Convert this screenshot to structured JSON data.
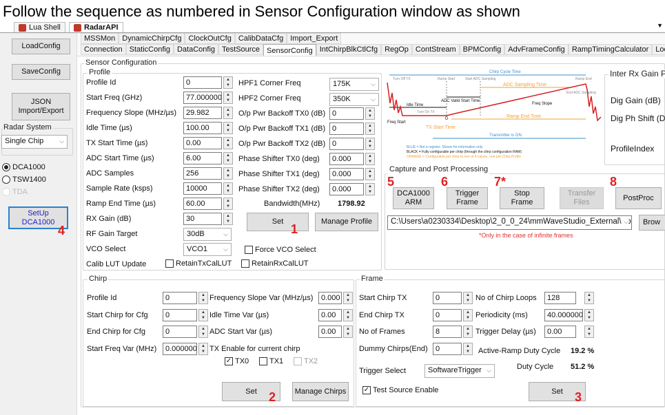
{
  "instruction": "Follow the sequence as numbered in Sensor Configuration window as shown",
  "app_tabs": [
    "Lua Shell",
    "RadarAPI"
  ],
  "left_panel": {
    "load_config": "LoadConfig",
    "save_config": "SaveConfig",
    "json_import_export": "JSON Import/Export",
    "radar_system_label": "Radar System",
    "radar_system_value": "Single Chip",
    "radios": [
      {
        "label": "DCA1000",
        "selected": true
      },
      {
        "label": "TSW1400",
        "selected": false
      },
      {
        "label": "TDA",
        "selected": false,
        "disabled": true
      }
    ],
    "setup_button": "SetUp DCA1000",
    "step": "4"
  },
  "tabs_row1": [
    "MSSMon",
    "DynamicChirpCfg",
    "ClockOutCfg",
    "CalibDataCfg",
    "Import_Export"
  ],
  "tabs_row2": [
    "Connection",
    "StaticConfig",
    "DataConfig",
    "TestSource",
    "SensorConfig",
    "IntChirpBlkCtlCfg",
    "RegOp",
    "ContStream",
    "BPMConfig",
    "AdvFrameConfig",
    "RampTimingCalculator",
    "LoopBa"
  ],
  "selected_tab": "SensorConfig",
  "sensor_config_label": "Sensor Configuration",
  "profile": {
    "label": "Profile",
    "left": [
      {
        "label": "Profile Id",
        "value": "0",
        "control": "spin"
      },
      {
        "label": "Start Freq (GHz)",
        "value": "77.000000",
        "control": "spin"
      },
      {
        "label": "Frequency Slope (MHz/µs)",
        "value": "29.982",
        "control": "spin"
      },
      {
        "label": "Idle Time (µs)",
        "value": "100.00",
        "control": "spin"
      },
      {
        "label": "TX Start Time (µs)",
        "value": "0.00",
        "control": "spin"
      },
      {
        "label": "ADC Start Time (µs)",
        "value": "6.00",
        "control": "spin"
      },
      {
        "label": "ADC Samples",
        "value": "256",
        "control": "spin"
      },
      {
        "label": "Sample Rate (ksps)",
        "value": "10000",
        "control": "spin"
      },
      {
        "label": "Ramp End Time (µs)",
        "value": "60.00",
        "control": "spin"
      },
      {
        "label": "RX Gain (dB)",
        "value": "30",
        "control": "spin"
      },
      {
        "label": "RF Gain Target",
        "value": "30dB",
        "control": "select"
      },
      {
        "label": "VCO Select",
        "value": "VCO1",
        "control": "select"
      }
    ],
    "calib_lut_label": "Calib LUT Update",
    "retain_tx": {
      "label": "RetainTxCalLUT",
      "checked": false
    },
    "retain_rx": {
      "label": "RetainRxCalLUT",
      "checked": false
    },
    "right": [
      {
        "label": "HPF1 Corner Freq",
        "value": "175K",
        "control": "select"
      },
      {
        "label": "HPF2 Corner Freq",
        "value": "350K",
        "control": "select"
      },
      {
        "label": "O/p Pwr Backoff TX0 (dB)",
        "value": "0",
        "control": "spin"
      },
      {
        "label": "O/p Pwr Backoff TX1 (dB)",
        "value": "0",
        "control": "spin"
      },
      {
        "label": "O/p Pwr Backoff TX2 (dB)",
        "value": "0",
        "control": "spin"
      },
      {
        "label": "Phase Shifter TX0 (deg)",
        "value": "0.000",
        "control": "spin"
      },
      {
        "label": "Phase Shifter TX1 (deg)",
        "value": "0.000",
        "control": "spin"
      },
      {
        "label": "Phase Shifter TX2 (deg)",
        "value": "0.000",
        "control": "spin"
      }
    ],
    "bandwidth_label": "Bandwidth(MHz)",
    "bandwidth_value": "1798.92",
    "set": "Set",
    "manage_profile": "Manage Profile",
    "force_vco": {
      "label": "Force VCO Select",
      "checked": false
    },
    "step": "1"
  },
  "diagram": {
    "chirp_cycle_time": "Chirp Cycle Time",
    "turn_off_tx": "Turn Off TX",
    "ramp_start": "Ramp Start",
    "start_adc": "Start ADC Sampling",
    "ramp_end": "Ramp End",
    "adc_sampling_time": "ADC Sampling Time",
    "end_adc": "End ADC Sampling",
    "adc_valid_start": "ADC Valid Start Time",
    "freq_slope": "Freq Slope",
    "idle_time": "Idle Time",
    "turn_on_tx": "Turn On TX",
    "zero": "0",
    "ramp_end_time": "Ramp End Time",
    "freq_start": "Freq Start",
    "tx_start_time": "TX Start Time",
    "transmitter_on": "Transmitter is ON",
    "legend_blue": "BLUE = Not a register. Shown for information only",
    "legend_black": "BLACK = Fully configurable per chirp (through the chirp configuration RAM)",
    "legend_orange": "ORANGE = Configurable per chirp to one of 4 values, one per Chirp Profile",
    "colors": {
      "blue": "#3a8fd0",
      "orange": "#f0a030",
      "red": "#d42020"
    }
  },
  "inter_rx": {
    "label": "Inter Rx Gain Ph",
    "dig_gain": "Dig Gain (dB)",
    "dig_ph_shift": "Dig Ph Shift (De",
    "profile_index": "ProfileIndex"
  },
  "capture": {
    "label": "Capture and Post Processing",
    "buttons": [
      {
        "label": "DCA1000 ARM",
        "step": "5",
        "enabled": true
      },
      {
        "label": "Trigger Frame",
        "step": "6",
        "enabled": true
      },
      {
        "label": "Stop Frame",
        "step": "7*",
        "enabled": true
      },
      {
        "label": "Transfer Files",
        "step": "",
        "enabled": false
      },
      {
        "label": "PostProc",
        "step": "8",
        "enabled": true
      }
    ],
    "path": "C:\\Users\\a0230334\\Desktop\\2_0_0_24\\mmWaveStudio_External\\PostPr",
    "browse": "Brow",
    "note": "*Only in the case of infinite frames"
  },
  "chirp": {
    "label": "Chirp",
    "left": [
      {
        "label": "Profile Id",
        "value": "0"
      },
      {
        "label": "Start Chirp for Cfg",
        "value": "0"
      },
      {
        "label": "End Chirp for Cfg",
        "value": "0"
      },
      {
        "label": "Start Freq Var (MHz)",
        "value": "0.000000"
      }
    ],
    "right": [
      {
        "label": "Frequency Slope Var (MHz/µs)",
        "value": "0.000"
      },
      {
        "label": "Idle Time Var (µs)",
        "value": "0.00"
      },
      {
        "label": "ADC Start Var (µs)",
        "value": "0.00"
      }
    ],
    "tx_enable_label": "TX Enable for current chirp",
    "tx": [
      {
        "label": "TX0",
        "checked": true
      },
      {
        "label": "TX1",
        "checked": false
      },
      {
        "label": "TX2",
        "checked": false,
        "disabled": true
      }
    ],
    "set": "Set",
    "manage_chirps": "Manage Chirps",
    "step": "2"
  },
  "frame": {
    "label": "Frame",
    "left": [
      {
        "label": "Start Chirp TX",
        "value": "0"
      },
      {
        "label": "End Chirp TX",
        "value": "0"
      },
      {
        "label": "No of Frames",
        "value": "8"
      },
      {
        "label": "Dummy Chirps(End)",
        "value": "0"
      }
    ],
    "right": [
      {
        "label": "No of Chirp Loops",
        "value": "128"
      },
      {
        "label": "Periodicity (ms)",
        "value": "40.000000"
      },
      {
        "label": "Trigger Delay (µs)",
        "value": "0.00"
      }
    ],
    "active_ramp_label": "Active-Ramp Duty Cycle",
    "active_ramp_value": "19.2 %",
    "duty_cycle_label": "Duty Cycle",
    "duty_cycle_value": "51.2 %",
    "trigger_select_label": "Trigger Select",
    "trigger_select_value": "SoftwareTrigger",
    "test_source": {
      "label": "Test Source Enable",
      "checked": true
    },
    "set": "Set",
    "step": "3"
  }
}
